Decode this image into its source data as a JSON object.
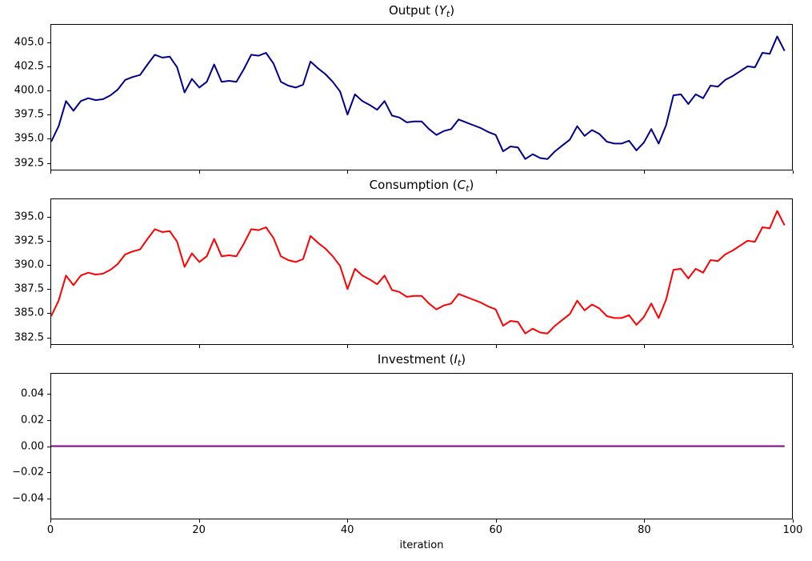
{
  "figure": {
    "background": "#ffffff",
    "xlabel": "iteration"
  },
  "chart_data": [
    {
      "type": "line",
      "series_name": "Output",
      "title": {
        "prefix": "Output (",
        "symbol": "Y",
        "subscript": "t",
        "suffix": ")"
      },
      "color": "#00008b",
      "line_width": 2,
      "x": {
        "min": 0,
        "max": 100
      },
      "xticks": [
        0,
        20,
        40,
        60,
        80,
        100
      ],
      "xtick_labels": [
        "0",
        "20",
        "40",
        "60",
        "80",
        "100"
      ],
      "show_xtick_labels": false,
      "ylim": [
        391.8,
        406.8
      ],
      "yticks": [
        392.5,
        395.0,
        397.5,
        400.0,
        402.5,
        405.0
      ],
      "ytick_labels": [
        "392.5",
        "395.0",
        "397.5",
        "400.0",
        "402.5",
        "405.0"
      ],
      "grid": false,
      "values": [
        394.7,
        396.3,
        398.9,
        397.9,
        398.9,
        399.2,
        399.0,
        399.1,
        399.5,
        400.1,
        401.1,
        401.4,
        401.6,
        402.7,
        403.7,
        403.4,
        403.5,
        402.4,
        399.8,
        401.2,
        400.3,
        400.9,
        402.7,
        400.9,
        401.0,
        400.9,
        402.2,
        403.7,
        403.6,
        403.9,
        402.8,
        400.9,
        400.5,
        400.3,
        400.6,
        403.0,
        402.3,
        401.7,
        400.9,
        399.9,
        397.5,
        399.6,
        398.9,
        398.5,
        398.0,
        398.9,
        397.4,
        397.2,
        396.7,
        396.8,
        396.8,
        396.0,
        395.4,
        395.8,
        396.0,
        397.0,
        396.7,
        396.4,
        396.1,
        395.7,
        395.4,
        393.7,
        394.2,
        394.1,
        392.9,
        393.4,
        393.0,
        392.9,
        393.7,
        394.3,
        394.9,
        396.3,
        395.3,
        395.9,
        395.5,
        394.7,
        394.5,
        394.5,
        394.8,
        393.8,
        394.6,
        396.0,
        394.5,
        396.4,
        399.5,
        399.6,
        398.6,
        399.6,
        399.2,
        400.5,
        400.4,
        401.1,
        401.5,
        402.0,
        402.5,
        402.4,
        403.9,
        403.8,
        405.6,
        404.1
      ]
    },
    {
      "type": "line",
      "series_name": "Consumption",
      "title": {
        "prefix": "Consumption (",
        "symbol": "C",
        "subscript": "t",
        "suffix": ")"
      },
      "color": "#ff0000",
      "line_width": 2,
      "x": {
        "min": 0,
        "max": 100
      },
      "xticks": [
        0,
        20,
        40,
        60,
        80,
        100
      ],
      "xtick_labels": [
        "0",
        "20",
        "40",
        "60",
        "80",
        "100"
      ],
      "show_xtick_labels": false,
      "ylim": [
        381.8,
        396.8
      ],
      "yticks": [
        382.5,
        385.0,
        387.5,
        390.0,
        392.5,
        395.0
      ],
      "ytick_labels": [
        "382.5",
        "385.0",
        "387.5",
        "390.0",
        "392.5",
        "395.0"
      ],
      "grid": false,
      "values": [
        384.7,
        386.3,
        388.9,
        387.9,
        388.9,
        389.2,
        389.0,
        389.1,
        389.5,
        390.1,
        391.1,
        391.4,
        391.6,
        392.7,
        393.7,
        393.4,
        393.5,
        392.4,
        389.8,
        391.2,
        390.3,
        390.9,
        392.7,
        390.9,
        391.0,
        390.9,
        392.2,
        393.7,
        393.6,
        393.9,
        392.8,
        390.9,
        390.5,
        390.3,
        390.6,
        393.0,
        392.3,
        391.7,
        390.9,
        389.9,
        387.5,
        389.6,
        388.9,
        388.5,
        388.0,
        388.9,
        387.4,
        387.2,
        386.7,
        386.8,
        386.8,
        386.0,
        385.4,
        385.8,
        386.0,
        387.0,
        386.7,
        386.4,
        386.1,
        385.7,
        385.4,
        383.7,
        384.2,
        384.1,
        382.9,
        383.4,
        383.0,
        382.9,
        383.7,
        384.3,
        384.9,
        386.3,
        385.3,
        385.9,
        385.5,
        384.7,
        384.5,
        384.5,
        384.8,
        383.8,
        384.6,
        386.0,
        384.5,
        386.4,
        389.5,
        389.6,
        388.6,
        389.6,
        389.2,
        390.5,
        390.4,
        391.1,
        391.5,
        392.0,
        392.5,
        392.4,
        393.9,
        393.8,
        395.6,
        394.1
      ]
    },
    {
      "type": "line",
      "series_name": "Investment",
      "title": {
        "prefix": "Investment (",
        "symbol": "I",
        "subscript": "t",
        "suffix": ")"
      },
      "color": "#800080",
      "line_width": 2,
      "x": {
        "min": 0,
        "max": 100
      },
      "xticks": [
        0,
        20,
        40,
        60,
        80,
        100
      ],
      "xtick_labels": [
        "0",
        "20",
        "40",
        "60",
        "80",
        "100"
      ],
      "show_xtick_labels": true,
      "xlabel": "iteration",
      "ylim": [
        -0.055,
        0.055
      ],
      "yticks": [
        -0.04,
        -0.02,
        0.0,
        0.02,
        0.04
      ],
      "ytick_labels": [
        "−0.04",
        "−0.02",
        "0.00",
        "0.02",
        "0.04"
      ],
      "grid": false,
      "values_constant": 0.0,
      "n_points": 100
    }
  ]
}
